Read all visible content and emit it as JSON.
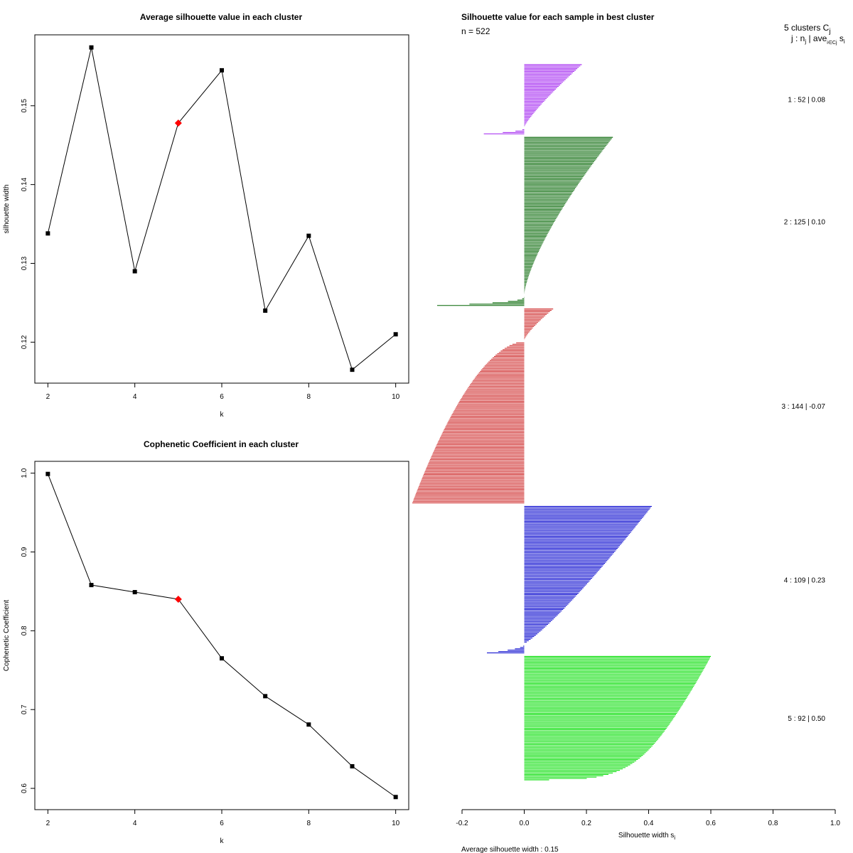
{
  "chart_data": [
    {
      "type": "line",
      "title": "Average silhouette value in each cluster",
      "xlabel": "k",
      "ylabel": "silhouette width",
      "x": [
        2,
        3,
        4,
        5,
        6,
        7,
        8,
        9,
        10
      ],
      "values": [
        0.1338,
        0.1574,
        0.129,
        0.1478,
        0.1545,
        0.124,
        0.1335,
        0.1165,
        0.121
      ],
      "highlight_index": 3,
      "marker_color": "#000000",
      "highlight_color": "#ff0000",
      "xlim": [
        1.7,
        10.3
      ],
      "ylim": [
        0.1148,
        0.159
      ],
      "xticks": [
        "2",
        "4",
        "6",
        "8",
        "10"
      ],
      "yticks": [
        "0.12",
        "0.13",
        "0.14",
        "0.15"
      ]
    },
    {
      "type": "line",
      "title": "Cophenetic Coefficient in each cluster",
      "xlabel": "k",
      "ylabel": "Cophenetic Coefficient",
      "x": [
        2,
        3,
        4,
        5,
        6,
        7,
        8,
        9,
        10
      ],
      "values": [
        0.999,
        0.858,
        0.849,
        0.84,
        0.765,
        0.717,
        0.681,
        0.628,
        0.589
      ],
      "highlight_index": 3,
      "marker_color": "#000000",
      "highlight_color": "#ff0000",
      "xlim": [
        1.7,
        10.3
      ],
      "ylim": [
        0.573,
        1.015
      ],
      "xticks": [
        "2",
        "4",
        "6",
        "8",
        "10"
      ],
      "yticks": [
        "0.6",
        "0.7",
        "0.8",
        "0.9",
        "1.0"
      ]
    },
    {
      "type": "bar",
      "orientation": "horizontal",
      "title": "Silhouette value for each sample in best cluster",
      "n_label": "n = 522",
      "header_line1": "5  clusters  C",
      "header_line1_sub": "j",
      "header_line2": "j :  n",
      "header_line2_sub": "j",
      "header_line2_rest": " | ave",
      "header_line2_sub2": "i∈Cj",
      "header_line2_end": " s",
      "header_line2_sub3": "i",
      "xlabel": "Silhouette width s",
      "xlabel_sub": "i",
      "xlim": [
        -0.2,
        1.0
      ],
      "xticks": [
        "-0.2",
        "0.0",
        "0.2",
        "0.4",
        "0.6",
        "0.8",
        "1.0"
      ],
      "footer": "Average silhouette width :  0.15",
      "clusters": [
        {
          "label": "1 :   52  |  0.08",
          "n": 52,
          "avg": 0.08,
          "color": "#a020f0",
          "max": 0.185,
          "min": -0.13,
          "neg_frac": 0.1,
          "pos_shape": 1.2,
          "neg_shape": 2.2
        },
        {
          "label": "2 :   125  |  0.10",
          "n": 125,
          "avg": 0.1,
          "color": "#006400",
          "max": 0.285,
          "min": -0.28,
          "neg_frac": 0.06,
          "pos_shape": 1.4,
          "neg_shape": 3.0
        },
        {
          "label": "3 :   144  |  -0.07",
          "n": 144,
          "avg": -0.07,
          "color": "#cd2626",
          "max": 0.093,
          "min": -0.36,
          "neg_frac": 0.83,
          "pos_shape": 1.3,
          "neg_shape": 0.55
        },
        {
          "label": "4 :   109  |  0.23",
          "n": 109,
          "avg": 0.23,
          "color": "#0000cd",
          "max": 0.41,
          "min": -0.12,
          "neg_frac": 0.06,
          "pos_shape": 0.85,
          "neg_shape": 2.0
        },
        {
          "label": "5 :   92  |  0.50",
          "n": 92,
          "avg": 0.5,
          "color": "#00dd00",
          "max": 0.6,
          "min": 0.08,
          "neg_frac": 0.0,
          "pos_shape": 0.35,
          "neg_shape": 1.0
        }
      ]
    }
  ]
}
